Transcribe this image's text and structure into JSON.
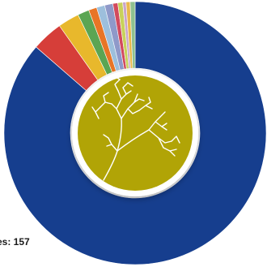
{
  "chart_data": {
    "type": "pie",
    "style": "donut",
    "visible_text": "es: 157",
    "slices": [
      {
        "color": "#163e8e",
        "value": 85.5
      },
      {
        "color": "#d63e39",
        "value": 3.8
      },
      {
        "color": "#e8b82c",
        "value": 2.6
      },
      {
        "color": "#5ba553",
        "value": 1.4
      },
      {
        "color": "#e87526",
        "value": 1.0
      },
      {
        "color": "#9dbfdc",
        "value": 1.0
      },
      {
        "color": "#8f99c9",
        "value": 1.0
      },
      {
        "color": "#d24a5e",
        "value": 0.6
      },
      {
        "color": "#c8d15a",
        "value": 0.6
      },
      {
        "color": "#c9a5c9",
        "value": 0.4
      },
      {
        "color": "#e9b84a",
        "value": 0.5
      },
      {
        "color": "#8fc08f",
        "value": 0.6
      }
    ],
    "center_emblem": {
      "fill": "#b1a406",
      "ring": "#ffffff",
      "icon": "tree-icon"
    }
  }
}
